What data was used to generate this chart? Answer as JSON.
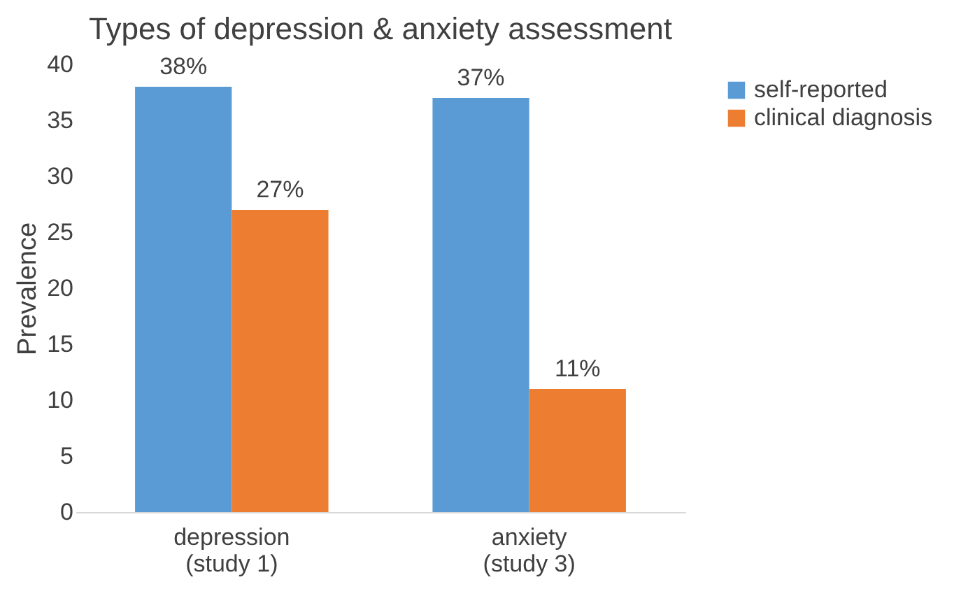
{
  "chart_data": {
    "type": "bar",
    "title": "Types of depression & anxiety assessment",
    "ylabel": "Prevalence",
    "categories": [
      "depression\n(study 1)",
      "anxiety\n(study 3)"
    ],
    "series": [
      {
        "name": "self-reported",
        "color": "#5b9bd5",
        "values": [
          38,
          37
        ],
        "value_labels": [
          "38%",
          "37%"
        ]
      },
      {
        "name": "clinical diagnosis",
        "color": "#ed7d31",
        "values": [
          27,
          11
        ],
        "value_labels": [
          "27%",
          "11%"
        ]
      }
    ],
    "ylim": [
      0,
      40
    ],
    "yticks": [
      0,
      5,
      10,
      15,
      20,
      25,
      30,
      35,
      40
    ],
    "grid": false,
    "legend": "right"
  }
}
